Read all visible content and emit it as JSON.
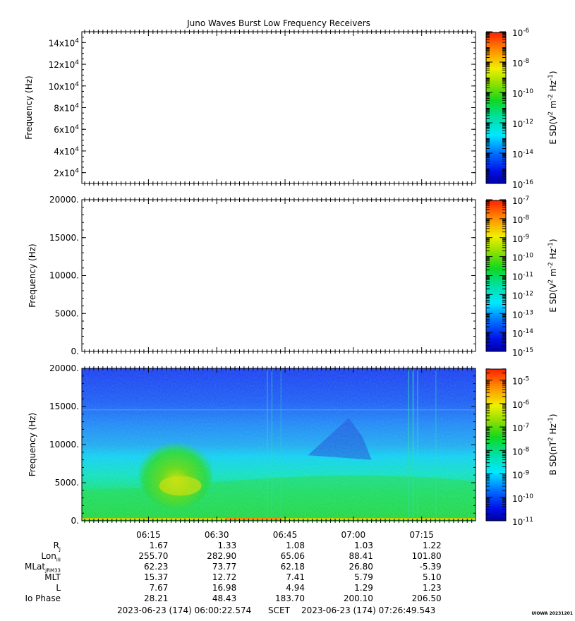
{
  "title": "Juno Waves Burst Low Frequency Receivers",
  "colors": {
    "noise_low": "#1030e0",
    "noise_mid": "#10c8ff",
    "green": "#18d838",
    "yellow": "#e8e800",
    "red": "#ff3010"
  },
  "chart_data": [
    {
      "type": "heatmap",
      "panel": "top",
      "ylabel": "Frequency (Hz)",
      "yticks": [
        {
          "mantissa": "2x10",
          "exp": "4"
        },
        {
          "mantissa": "4x10",
          "exp": "4"
        },
        {
          "mantissa": "6x10",
          "exp": "4"
        },
        {
          "mantissa": "8x10",
          "exp": "4"
        },
        {
          "mantissa": "10x10",
          "exp": "4"
        },
        {
          "mantissa": "12x10",
          "exp": "4"
        },
        {
          "mantissa": "14x10",
          "exp": "4"
        }
      ],
      "ylim": [
        10000,
        150000
      ],
      "colorbar": {
        "label_prefix": "E SD(V",
        "label_sup1": "2",
        "label_mid": " m",
        "label_sup2": "-2",
        "label_mid2": " Hz",
        "label_sup3": "-1",
        "label_suffix": ")",
        "scale": "log",
        "range_exp": [
          -16,
          -6
        ],
        "ticks": [
          {
            "base": "10",
            "exp": "-6"
          },
          {
            "base": "10",
            "exp": "-8"
          },
          {
            "base": "10",
            "exp": "-10"
          },
          {
            "base": "10",
            "exp": "-12"
          },
          {
            "base": "10",
            "exp": "-14"
          },
          {
            "base": "10",
            "exp": "-16"
          }
        ]
      },
      "data": "empty"
    },
    {
      "type": "heatmap",
      "panel": "middle",
      "ylabel": "Frequency (Hz)",
      "yticks": [
        "0.",
        "5000.",
        "10000.",
        "15000.",
        "20000."
      ],
      "ylim": [
        0,
        20000
      ],
      "colorbar": {
        "label_prefix": "E SD(V",
        "label_sup1": "2",
        "label_mid": " m",
        "label_sup2": "-2",
        "label_mid2": " Hz",
        "label_sup3": "-1",
        "label_suffix": ")",
        "scale": "log",
        "range_exp": [
          -15,
          -7
        ],
        "ticks": [
          {
            "base": "10",
            "exp": "-7"
          },
          {
            "base": "10",
            "exp": "-8"
          },
          {
            "base": "10",
            "exp": "-9"
          },
          {
            "base": "10",
            "exp": "-10"
          },
          {
            "base": "10",
            "exp": "-11"
          },
          {
            "base": "10",
            "exp": "-12"
          },
          {
            "base": "10",
            "exp": "-13"
          },
          {
            "base": "10",
            "exp": "-14"
          },
          {
            "base": "10",
            "exp": "-15"
          }
        ]
      },
      "data": "empty"
    },
    {
      "type": "heatmap",
      "panel": "bottom",
      "ylabel": "Frequency (Hz)",
      "yticks": [
        "0.",
        "5000.",
        "10000.",
        "15000.",
        "20000."
      ],
      "ylim": [
        0,
        20000
      ],
      "colorbar": {
        "label_prefix": "B SD(nT",
        "label_sup1": "2",
        "label_mid": " Hz",
        "label_sup2": "-1",
        "label_mid2": "",
        "label_sup3": "",
        "label_suffix": ")",
        "scale": "log",
        "range_exp": [
          -11,
          -4.5
        ],
        "ticks": [
          {
            "base": "10",
            "exp": "-5"
          },
          {
            "base": "10",
            "exp": "-6"
          },
          {
            "base": "10",
            "exp": "-7"
          },
          {
            "base": "10",
            "exp": "-8"
          },
          {
            "base": "10",
            "exp": "-9"
          },
          {
            "base": "10",
            "exp": "-10"
          },
          {
            "base": "10",
            "exp": "-11"
          }
        ]
      },
      "data": "spectrogram"
    }
  ],
  "time_axis": {
    "ticks": [
      "06:15",
      "06:30",
      "06:45",
      "07:00",
      "07:15"
    ],
    "start": "06:00:22.574",
    "end": "07:26:49.543"
  },
  "ephemeris": [
    {
      "label": "R",
      "sub": "J",
      "values": [
        "1.67",
        "1.33",
        "1.08",
        "1.03",
        "1.22"
      ]
    },
    {
      "label": "Lon",
      "sub": "III",
      "values": [
        "255.70",
        "282.90",
        "65.06",
        "88.41",
        "101.80"
      ]
    },
    {
      "label": "MLat",
      "sub": "JRM33",
      "values": [
        "62.23",
        "73.77",
        "62.18",
        "26.80",
        "-5.39"
      ]
    },
    {
      "label": "MLT",
      "sub": "",
      "values": [
        "15.37",
        "12.72",
        "7.41",
        "5.79",
        "5.10"
      ]
    },
    {
      "label": "L",
      "sub": "",
      "values": [
        "7.67",
        "16.98",
        "4.94",
        "1.29",
        "1.23"
      ]
    },
    {
      "label": "Io Phase",
      "sub": "",
      "values": [
        "28.21",
        "48.43",
        "183.70",
        "200.10",
        "206.50"
      ]
    }
  ],
  "footer": {
    "start": "2023-06-23 (174) 06:00:22.574",
    "frame": "SCET",
    "end": "2023-06-23 (174) 07:26:49.543",
    "stamp": "UIOWA 20231201"
  }
}
